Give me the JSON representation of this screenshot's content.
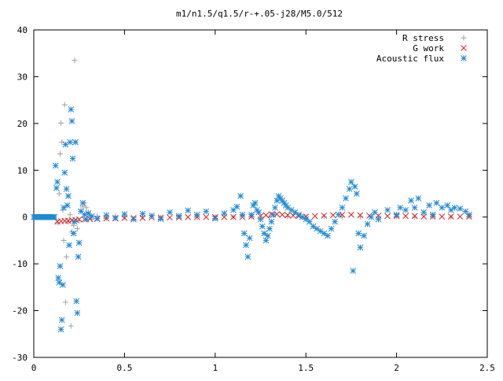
{
  "chart_data": {
    "type": "scatter",
    "title": "m1/n1.5/q1.5/r-+.05-j28/M5.0/512",
    "xlabel": "",
    "ylabel": "",
    "xlim": [
      0,
      2.5
    ],
    "ylim": [
      -30,
      40
    ],
    "x_ticks": [
      0,
      0.5,
      1,
      1.5,
      2,
      2.5
    ],
    "x_tick_labels": [
      "0",
      "0.5",
      "1",
      "1.5",
      "2",
      "2.5"
    ],
    "y_ticks": [
      -30,
      -20,
      -10,
      0,
      10,
      20,
      30,
      40
    ],
    "y_tick_labels": [
      "-30",
      "-20",
      "-10",
      "0",
      "10",
      "20",
      "30",
      "40"
    ],
    "grid": false,
    "legend_position": "top-right",
    "series": [
      {
        "name": "R stress",
        "marker": "plus",
        "color": "#a0a0a0",
        "points": [
          [
            0.13,
            -1.2
          ],
          [
            0.14,
            5.0
          ],
          [
            0.145,
            13.5
          ],
          [
            0.15,
            20.1
          ],
          [
            0.155,
            16.0
          ],
          [
            0.16,
            1.5
          ],
          [
            0.165,
            -5.0
          ],
          [
            0.17,
            24.0
          ],
          [
            0.175,
            -18.2
          ],
          [
            0.18,
            -8.5
          ],
          [
            0.19,
            -1.0
          ],
          [
            0.2,
            0.5
          ],
          [
            0.205,
            -23.3
          ],
          [
            0.21,
            -3.2
          ],
          [
            0.22,
            -1.8
          ],
          [
            0.225,
            33.5
          ],
          [
            0.23,
            16.0
          ],
          [
            0.24,
            -2.5
          ],
          [
            0.25,
            -0.8
          ],
          [
            0.26,
            1.5
          ],
          [
            0.27,
            2.3
          ],
          [
            0.28,
            3.0
          ],
          [
            0.29,
            2.0
          ],
          [
            0.3,
            1.0
          ],
          [
            0.31,
            0.3
          ],
          [
            0.32,
            -0.5
          ],
          [
            0.35,
            0.2
          ],
          [
            0.4,
            -0.3
          ],
          [
            0.45,
            0.2
          ],
          [
            0.5,
            0.0
          ],
          [
            0.6,
            0.1
          ],
          [
            0.7,
            -0.1
          ],
          [
            0.8,
            0.1
          ],
          [
            0.9,
            0.0
          ],
          [
            1.0,
            0.1
          ],
          [
            1.1,
            0.0
          ],
          [
            1.2,
            0.1
          ],
          [
            1.3,
            0.0
          ],
          [
            1.4,
            0.1
          ],
          [
            1.5,
            0.0
          ],
          [
            1.6,
            0.1
          ],
          [
            1.7,
            0.0
          ],
          [
            1.8,
            0.1
          ],
          [
            1.9,
            0.0
          ],
          [
            2.0,
            0.1
          ],
          [
            2.1,
            0.0
          ],
          [
            2.2,
            0.1
          ],
          [
            2.3,
            0.0
          ],
          [
            2.4,
            0.1
          ]
        ]
      },
      {
        "name": "G work",
        "marker": "x",
        "color": "#e02020",
        "points": [
          [
            0.13,
            -1.0
          ],
          [
            0.15,
            -0.9
          ],
          [
            0.17,
            -0.8
          ],
          [
            0.19,
            -0.8
          ],
          [
            0.21,
            -0.7
          ],
          [
            0.23,
            -0.6
          ],
          [
            0.25,
            -0.5
          ],
          [
            0.28,
            -0.5
          ],
          [
            0.31,
            -0.4
          ],
          [
            0.35,
            -0.4
          ],
          [
            0.4,
            -0.3
          ],
          [
            0.45,
            -0.3
          ],
          [
            0.5,
            -0.2
          ],
          [
            0.55,
            -0.2
          ],
          [
            0.6,
            -0.2
          ],
          [
            0.65,
            -0.1
          ],
          [
            0.7,
            -0.1
          ],
          [
            0.75,
            -0.1
          ],
          [
            0.8,
            -0.1
          ],
          [
            0.85,
            0.0
          ],
          [
            0.9,
            0.0
          ],
          [
            0.95,
            0.0
          ],
          [
            1.0,
            0.0
          ],
          [
            1.05,
            0.0
          ],
          [
            1.1,
            0.0
          ],
          [
            1.15,
            0.0
          ],
          [
            1.2,
            0.1
          ],
          [
            1.25,
            0.2
          ],
          [
            1.28,
            0.4
          ],
          [
            1.31,
            0.6
          ],
          [
            1.34,
            0.6
          ],
          [
            1.37,
            0.5
          ],
          [
            1.4,
            0.4
          ],
          [
            1.43,
            0.3
          ],
          [
            1.46,
            0.2
          ],
          [
            1.5,
            0.1
          ],
          [
            1.55,
            0.2
          ],
          [
            1.6,
            0.3
          ],
          [
            1.65,
            0.4
          ],
          [
            1.7,
            0.5
          ],
          [
            1.75,
            0.5
          ],
          [
            1.8,
            0.4
          ],
          [
            1.85,
            0.3
          ],
          [
            1.9,
            0.3
          ],
          [
            1.95,
            0.2
          ],
          [
            2.0,
            0.2
          ],
          [
            2.05,
            0.2
          ],
          [
            2.1,
            0.2
          ],
          [
            2.15,
            0.1
          ],
          [
            2.2,
            0.1
          ],
          [
            2.25,
            0.1
          ],
          [
            2.3,
            0.1
          ],
          [
            2.35,
            0.1
          ],
          [
            2.4,
            0.1
          ]
        ]
      },
      {
        "name": "Acoustic flux",
        "marker": "star",
        "color": "#1e8ad8",
        "points": [
          [
            0.12,
            11.0
          ],
          [
            0.125,
            6.2
          ],
          [
            0.13,
            7.5
          ],
          [
            0.135,
            -13.0
          ],
          [
            0.14,
            -14.0
          ],
          [
            0.145,
            -10.5
          ],
          [
            0.15,
            -24.0
          ],
          [
            0.155,
            -22.0
          ],
          [
            0.16,
            -14.5
          ],
          [
            0.165,
            2.0
          ],
          [
            0.17,
            9.5
          ],
          [
            0.175,
            15.5
          ],
          [
            0.18,
            6.0
          ],
          [
            0.185,
            2.5
          ],
          [
            0.19,
            4.5
          ],
          [
            0.195,
            -6.0
          ],
          [
            0.2,
            16.0
          ],
          [
            0.205,
            23.0
          ],
          [
            0.21,
            20.5
          ],
          [
            0.215,
            12.5
          ],
          [
            0.22,
            -3.5
          ],
          [
            0.225,
            -1.0
          ],
          [
            0.23,
            16.0
          ],
          [
            0.235,
            -18.0
          ],
          [
            0.24,
            -20.5
          ],
          [
            0.245,
            -8.5
          ],
          [
            0.25,
            -5.5
          ],
          [
            0.26,
            1.2
          ],
          [
            0.27,
            3.0
          ],
          [
            0.28,
            0.5
          ],
          [
            0.29,
            -0.5
          ],
          [
            0.3,
            0.8
          ],
          [
            0.32,
            0.2
          ],
          [
            0.35,
            -0.3
          ],
          [
            0.4,
            0.4
          ],
          [
            0.45,
            -0.2
          ],
          [
            0.5,
            0.6
          ],
          [
            0.55,
            -0.5
          ],
          [
            0.6,
            0.7
          ],
          [
            0.65,
            0.3
          ],
          [
            0.7,
            -0.4
          ],
          [
            0.75,
            1.0
          ],
          [
            0.8,
            0.2
          ],
          [
            0.85,
            1.4
          ],
          [
            0.9,
            0.5
          ],
          [
            0.95,
            1.2
          ],
          [
            1.0,
            -0.3
          ],
          [
            1.05,
            0.8
          ],
          [
            1.1,
            1.5
          ],
          [
            1.12,
            2.2
          ],
          [
            1.14,
            4.5
          ],
          [
            1.15,
            0.5
          ],
          [
            1.16,
            -3.5
          ],
          [
            1.17,
            -6.0
          ],
          [
            1.18,
            -8.5
          ],
          [
            1.19,
            -4.5
          ],
          [
            1.2,
            0.5
          ],
          [
            1.21,
            2.5
          ],
          [
            1.22,
            3.0
          ],
          [
            1.23,
            1.5
          ],
          [
            1.24,
            1.0
          ],
          [
            1.25,
            -0.5
          ],
          [
            1.26,
            -2.0
          ],
          [
            1.27,
            -3.5
          ],
          [
            1.28,
            -5.0
          ],
          [
            1.29,
            -4.0
          ],
          [
            1.3,
            -2.5
          ],
          [
            1.31,
            -1.0
          ],
          [
            1.32,
            0.5
          ],
          [
            1.33,
            2.0
          ],
          [
            1.34,
            3.5
          ],
          [
            1.35,
            4.5
          ],
          [
            1.36,
            4.0
          ],
          [
            1.37,
            3.5
          ],
          [
            1.38,
            3.0
          ],
          [
            1.39,
            2.5
          ],
          [
            1.4,
            2.0
          ],
          [
            1.42,
            1.5
          ],
          [
            1.44,
            1.0
          ],
          [
            1.46,
            0.5
          ],
          [
            1.48,
            0.0
          ],
          [
            1.5,
            -0.5
          ],
          [
            1.52,
            -1.0
          ],
          [
            1.54,
            -2.0
          ],
          [
            1.56,
            -2.5
          ],
          [
            1.58,
            -3.0
          ],
          [
            1.6,
            -3.5
          ],
          [
            1.62,
            -4.0
          ],
          [
            1.64,
            -2.5
          ],
          [
            1.66,
            -1.0
          ],
          [
            1.68,
            0.5
          ],
          [
            1.7,
            2.0
          ],
          [
            1.72,
            4.0
          ],
          [
            1.74,
            6.0
          ],
          [
            1.75,
            7.5
          ],
          [
            1.76,
            -11.5
          ],
          [
            1.77,
            6.5
          ],
          [
            1.78,
            5.0
          ],
          [
            1.79,
            -3.5
          ],
          [
            1.8,
            -6.5
          ],
          [
            1.82,
            -4.0
          ],
          [
            1.84,
            -1.5
          ],
          [
            1.86,
            0.0
          ],
          [
            1.88,
            1.0
          ],
          [
            1.9,
            -0.5
          ],
          [
            1.95,
            1.5
          ],
          [
            2.0,
            0.5
          ],
          [
            2.02,
            2.0
          ],
          [
            2.05,
            1.5
          ],
          [
            2.08,
            3.5
          ],
          [
            2.1,
            2.0
          ],
          [
            2.12,
            4.0
          ],
          [
            2.15,
            1.0
          ],
          [
            2.18,
            2.5
          ],
          [
            2.2,
            0.5
          ],
          [
            2.22,
            3.0
          ],
          [
            2.25,
            2.0
          ],
          [
            2.28,
            2.5
          ],
          [
            2.3,
            1.5
          ],
          [
            2.32,
            2.0
          ],
          [
            2.35,
            1.8
          ],
          [
            2.38,
            1.2
          ],
          [
            2.4,
            0.5
          ]
        ]
      }
    ]
  }
}
